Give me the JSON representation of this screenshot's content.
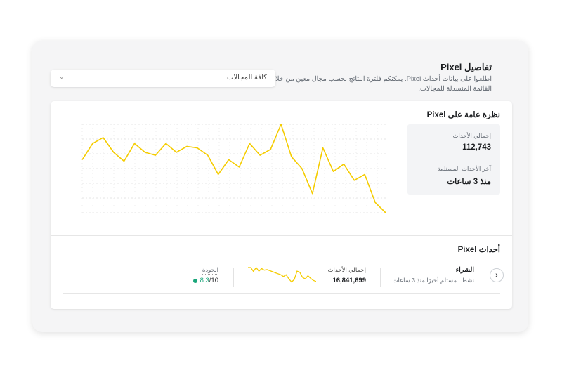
{
  "header": {
    "title": "تفاصيل Pixel",
    "description": "اطلعوا على بيانات أحداث Pixel. يمكنكم فلترة النتائج بحسب مجال معين من خلال القائمة المنسدلة للمجالات."
  },
  "filter": {
    "selected": "كافة المجالات",
    "icon": "chevron-down-icon"
  },
  "overview": {
    "title": "نظرة عامة على Pixel",
    "total_label": "إجمالي الأحداث",
    "total_value": "112,743",
    "last_label": "آخر الأحداث المستلمة",
    "last_value": "منذ 3 ساعات"
  },
  "chart_data": {
    "type": "line",
    "title": "",
    "xlabel": "",
    "ylabel": "",
    "ylim": [
      0,
      6
    ],
    "grid": true,
    "color": "#f5cc00",
    "values": [
      3.6,
      4.7,
      5.1,
      4.1,
      3.5,
      4.7,
      4.1,
      3.9,
      4.7,
      4.1,
      4.5,
      4.4,
      3.9,
      2.6,
      3.6,
      3.1,
      4.7,
      3.9,
      4.3,
      6.0,
      3.8,
      3.0,
      1.3,
      4.4,
      2.8,
      3.3,
      2.2,
      2.6,
      0.7,
      0
    ]
  },
  "events": {
    "title": "أحداث Pixel",
    "rows": [
      {
        "name": "الشراء",
        "status": "نشط | مستلم أخيرًا منذ 3 ساعات",
        "total_label": "إجمالي الأحداث",
        "total_value": "16,841,699",
        "quality_label": "الجودة",
        "quality_score": "8.3",
        "quality_max": "/10",
        "quality_color": "#1aa67a",
        "sparkline": [
          6,
          6,
          4.5,
          6,
          4.6,
          5.6,
          5,
          5.2,
          4.8,
          4.4,
          4,
          3.6,
          3.2,
          2.5,
          3.2,
          1.6,
          0.4,
          1.4,
          4.6,
          4.2,
          2.2,
          1.6,
          2.8,
          1.8,
          1,
          0.6
        ]
      }
    ]
  }
}
